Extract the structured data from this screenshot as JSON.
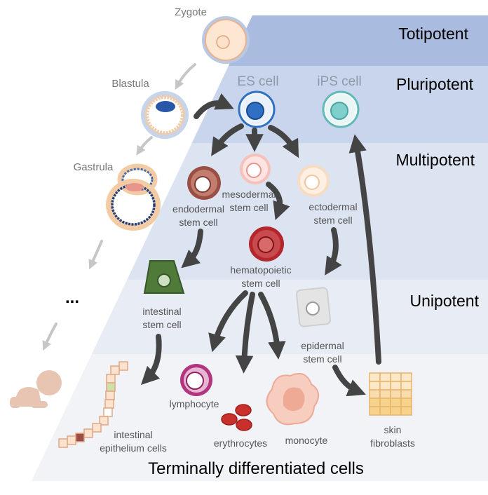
{
  "tiers": {
    "totipotent": "Totipotent",
    "pluripotent": "Pluripotent",
    "multipotent": "Multipotent",
    "unipotent": "Unipotent",
    "terminal": "Terminally differentiated cells"
  },
  "stages": {
    "zygote": "Zygote",
    "blastula": "Blastula",
    "gastrula": "Gastrula",
    "ellipsis": "..."
  },
  "cells": {
    "es": "ES cell",
    "ips": "iPS cell",
    "endodermal": [
      "endodermal",
      "stem cell"
    ],
    "mesodermal": [
      "mesodermal",
      "stem cell"
    ],
    "ectodermal": [
      "ectodermal",
      "stem cell"
    ],
    "hematopoietic": [
      "hematopoietic",
      "stem cell"
    ],
    "intestinal_stem": [
      "intestinal",
      "stem cell"
    ],
    "epidermal": [
      "epidermal",
      "stem cell"
    ],
    "lymphocyte": "lymphocyte",
    "erythrocytes": "erythrocytes",
    "monocyte": "monocyte",
    "intestinal_epithelium": [
      "intestinal",
      "epithelium cells"
    ],
    "skin_fibroblasts": [
      "skin",
      "fibroblasts"
    ]
  },
  "colors": {
    "totipotent_band": "#a9bcdf",
    "pluripotent_band": "#c9d5ec",
    "multipotent_band": "#dde4f1",
    "unipotent_band": "#e8ecf4",
    "terminal_band": "#f1f3f7",
    "dark_arrow": "#444444",
    "light_arrow": "#c6c6c6",
    "es_cell": "#2f6fc4",
    "ips_cell": "#5fb9b6",
    "endodermal": "#9b4f44",
    "mesodermal": "#e8958d",
    "ectodermal": "#f1c49f",
    "hematopoietic": "#b3262c",
    "intestinal_stem": "#4f7a3a",
    "lymphocyte": "#b2357f",
    "erythrocyte": "#c9302c",
    "monocyte": "#efaa96",
    "fibroblast": "#f7d28c"
  }
}
